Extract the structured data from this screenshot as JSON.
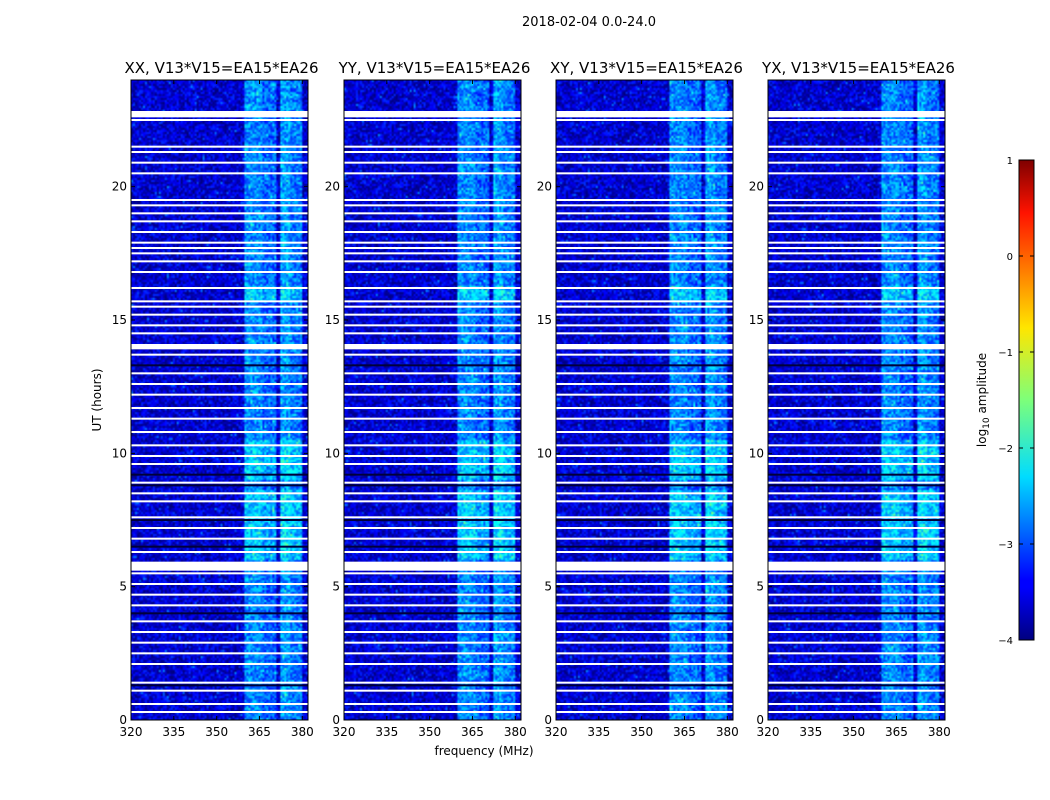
{
  "chart_data": {
    "type": "heatmap",
    "suptitle": "2018-02-04 0.0-24.0",
    "xlabel": "frequency (MHz)",
    "ylabel": "UT (hours)",
    "xlim": [
      320,
      382
    ],
    "ylim": [
      0,
      24
    ],
    "xticks": [
      320,
      335,
      350,
      365,
      380
    ],
    "yticks": [
      0,
      5,
      10,
      15,
      20
    ],
    "panels": [
      {
        "title": "XX, V13*V15=EA15*EA26",
        "pol": "XX"
      },
      {
        "title": "YY, V13*V15=EA15*EA26",
        "pol": "YY"
      },
      {
        "title": "XY, V13*V15=EA15*EA26",
        "pol": "XY"
      },
      {
        "title": "YX, V13*V15=EA15*EA26",
        "pol": "YX"
      }
    ],
    "colorbar": {
      "label": "log10 amplitude",
      "range": [
        -4,
        1
      ],
      "ticks": [
        1,
        0,
        -1,
        -2,
        -3,
        -4
      ],
      "tick_labels": [
        "1",
        "0",
        "−1",
        "−2",
        "−3",
        "−4"
      ],
      "colormap": "jet"
    },
    "background_level": -3.6,
    "bright_bands_mhz": [
      {
        "from": 360,
        "to": 366,
        "level": -2.7
      },
      {
        "from": 366,
        "to": 371,
        "level": -2.9
      },
      {
        "from": 372,
        "to": 376,
        "level": -2.6
      },
      {
        "from": 376,
        "to": 380,
        "level": -2.8
      }
    ],
    "blank_rows_ut": [
      22.8,
      22.5,
      21.5,
      21.3,
      20.9,
      20.5,
      19.5,
      19.3,
      19.0,
      18.7,
      18.3,
      17.9,
      17.7,
      17.5,
      17.2,
      16.8,
      16.2,
      15.7,
      15.5,
      15.2,
      14.8,
      14.5,
      13.7,
      13.0,
      12.6,
      12.2,
      11.7,
      11.3,
      10.8,
      10.3,
      9.9,
      9.6,
      8.9,
      8.5,
      8.2,
      7.6,
      7.2,
      6.8,
      6.3,
      5.9,
      5.5,
      5.1,
      4.7,
      4.3,
      3.7,
      3.3,
      2.9,
      2.5,
      2.1,
      1.4,
      1.1,
      0.6,
      0.3
    ],
    "wide_gaps_ut": [
      {
        "from": 22.8,
        "to": 22.6
      },
      {
        "from": 14.1,
        "to": 13.9
      },
      {
        "from": 5.9,
        "to": 5.6
      }
    ],
    "flagged_rows_ut": [
      13.3,
      9.2,
      8.8,
      7.5,
      6.5,
      4.0,
      1.3
    ]
  }
}
